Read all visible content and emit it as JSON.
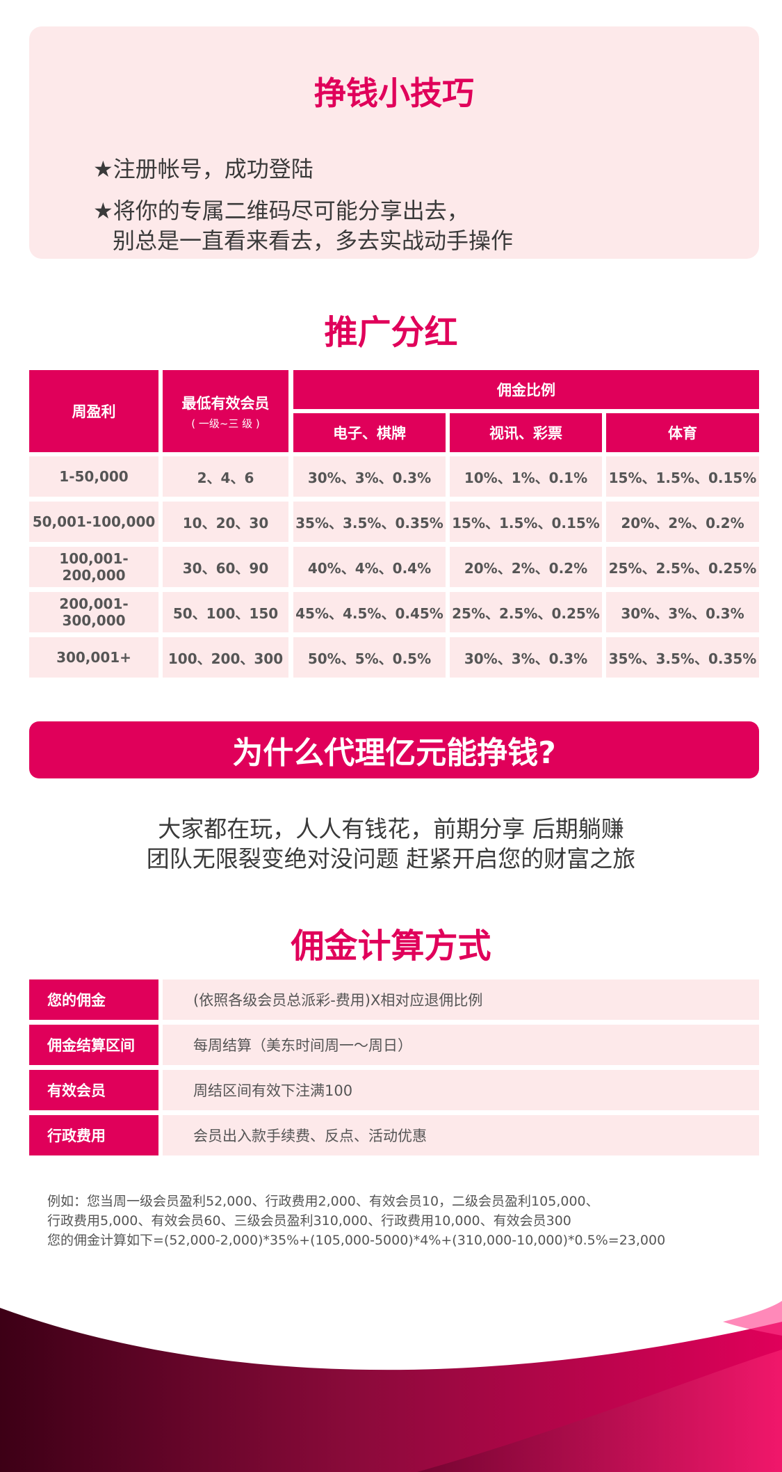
{
  "tips": {
    "title": "挣钱小技巧",
    "lines": [
      "★注册帐号，成功登陆",
      "★将你的专属二维码尽可能分享出去，",
      "别总是一直看来看去，多去实战动手操作"
    ]
  },
  "promo": {
    "title": "推广分红",
    "headers": {
      "weekly_profit": "周盈利",
      "min_members": "最低有效会员",
      "min_members_sub": "( 一级~三 级 )",
      "commission_ratio": "佣金比例",
      "categories": [
        "电子、棋牌",
        "视讯、彩票",
        "体育"
      ]
    },
    "rows": [
      {
        "profit": "1-50,000",
        "members": "2、4、6",
        "c1": "30%、3%、0.3%",
        "c2": "10%、1%、0.1%",
        "c3": "15%、1.5%、0.15%"
      },
      {
        "profit": "50,001-100,000",
        "members": "10、20、30",
        "c1": "35%、3.5%、0.35%",
        "c2": "15%、1.5%、0.15%",
        "c3": "20%、2%、0.2%"
      },
      {
        "profit": "100,001-200,000",
        "members": "30、60、90",
        "c1": "40%、4%、0.4%",
        "c2": "20%、2%、0.2%",
        "c3": "25%、2.5%、0.25%"
      },
      {
        "profit": "200,001-300,000",
        "members": "50、100、150",
        "c1": "45%、4.5%、0.45%",
        "c2": "25%、2.5%、0.25%",
        "c3": "30%、3%、0.3%"
      },
      {
        "profit": "300,001+",
        "members": "100、200、300",
        "c1": "50%、5%、0.5%",
        "c2": "30%、3%、0.3%",
        "c3": "35%、3.5%、0.35%"
      }
    ]
  },
  "why": {
    "banner": "为什么代理亿元能挣钱?",
    "lines": [
      "大家都在玩，人人有钱花，前期分享 后期躺赚",
      "团队无限裂变绝对没问题 赶紧开启您的财富之旅"
    ]
  },
  "calc": {
    "title": "佣金计算方式",
    "rows": [
      {
        "label": "您的佣金",
        "value": "(依照各级会员总派彩-费用)X相对应退佣比例"
      },
      {
        "label": "佣金结算区间",
        "value": "每周结算（美东时间周一～周日）"
      },
      {
        "label": "有效会员",
        "value": "周结区间有效下注满100"
      },
      {
        "label": "行政费用",
        "value": "会员出入款手续费、反点、活动优惠"
      }
    ]
  },
  "example": {
    "lines": [
      "例如：您当周一级会员盈利52,000、行政费用2,000、有效会员10，二级会员盈利105,000、",
      "行政费用5,000、有效会员60、三级会员盈利310,000、行政费用10,000、有效会员300",
      "您的佣金计算如下=(52,000-2,000)*35%+(105,000-5000)*4%+(310,000-10,000)*0.5%=23,000"
    ]
  },
  "colors": {
    "accent": "#e0005a",
    "light_pink": "#fde9ea",
    "dark_wave": "#3d0016"
  }
}
